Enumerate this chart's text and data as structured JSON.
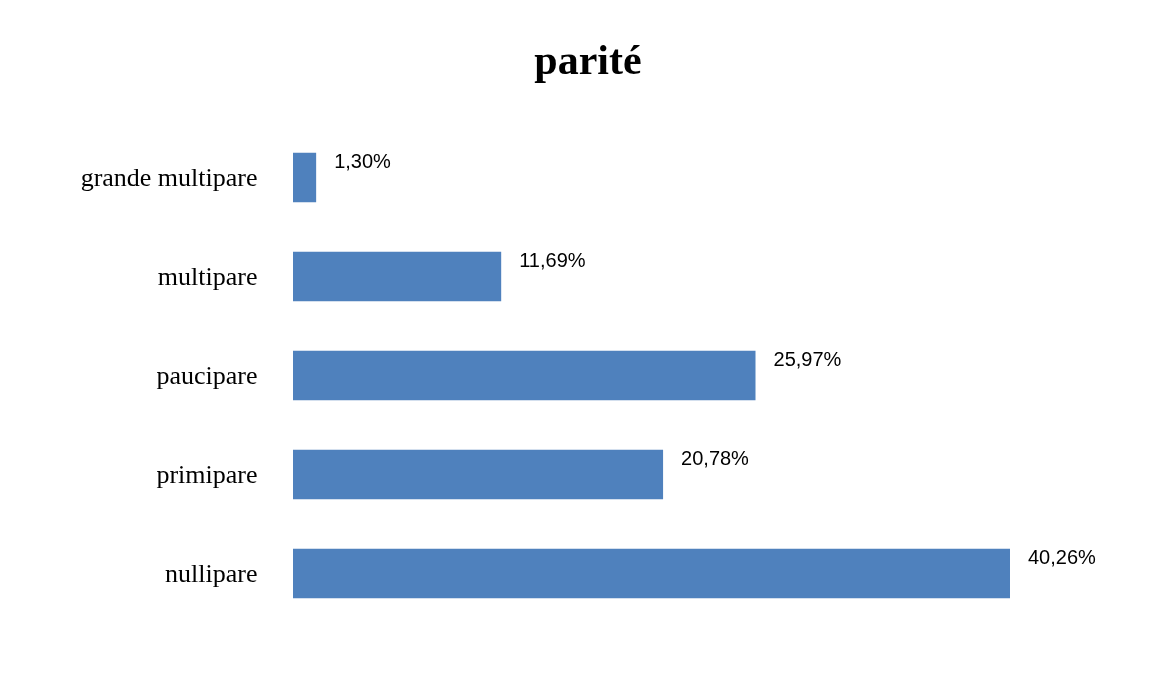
{
  "chart_data": {
    "type": "bar",
    "title": "parité",
    "orientation": "horizontal",
    "categories": [
      "grande multipare",
      "multipare",
      "paucipare",
      "primipare",
      "nullipare"
    ],
    "values": [
      1.3,
      11.69,
      25.97,
      20.78,
      40.26
    ],
    "value_labels": [
      "1,30%",
      "11,69%",
      "25,97%",
      "20,78%",
      "40,26%"
    ],
    "color": "#4f81bd"
  }
}
